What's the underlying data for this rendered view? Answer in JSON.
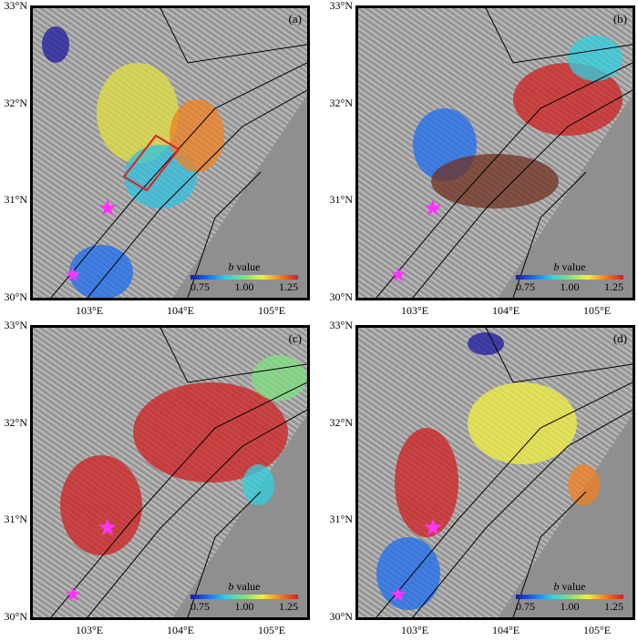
{
  "panels": [
    {
      "label": "(a)",
      "star_count": 2,
      "rect": true
    },
    {
      "label": "(b)",
      "star_count": 2
    },
    {
      "label": "(c)",
      "star_count": 2
    },
    {
      "label": "(d)",
      "star_count": 2
    }
  ],
  "axes": {
    "lat_labels": [
      "33°N",
      "32°N",
      "31°N",
      "30°N"
    ],
    "lon_labels": [
      "103°E",
      "104°E",
      "105°E"
    ]
  },
  "colorbar": {
    "title_italic": "b",
    "title": " value",
    "ticks": [
      "0.75",
      "1.00",
      "1.25"
    ],
    "range": [
      0.75,
      1.25
    ],
    "colormap": [
      "#1a1aa0",
      "#1e6ef0",
      "#30d0e0",
      "#80e080",
      "#f0f040",
      "#f08020",
      "#d02020"
    ]
  },
  "colors": {
    "star": "#ff33ff",
    "rect": "#e02020"
  }
}
